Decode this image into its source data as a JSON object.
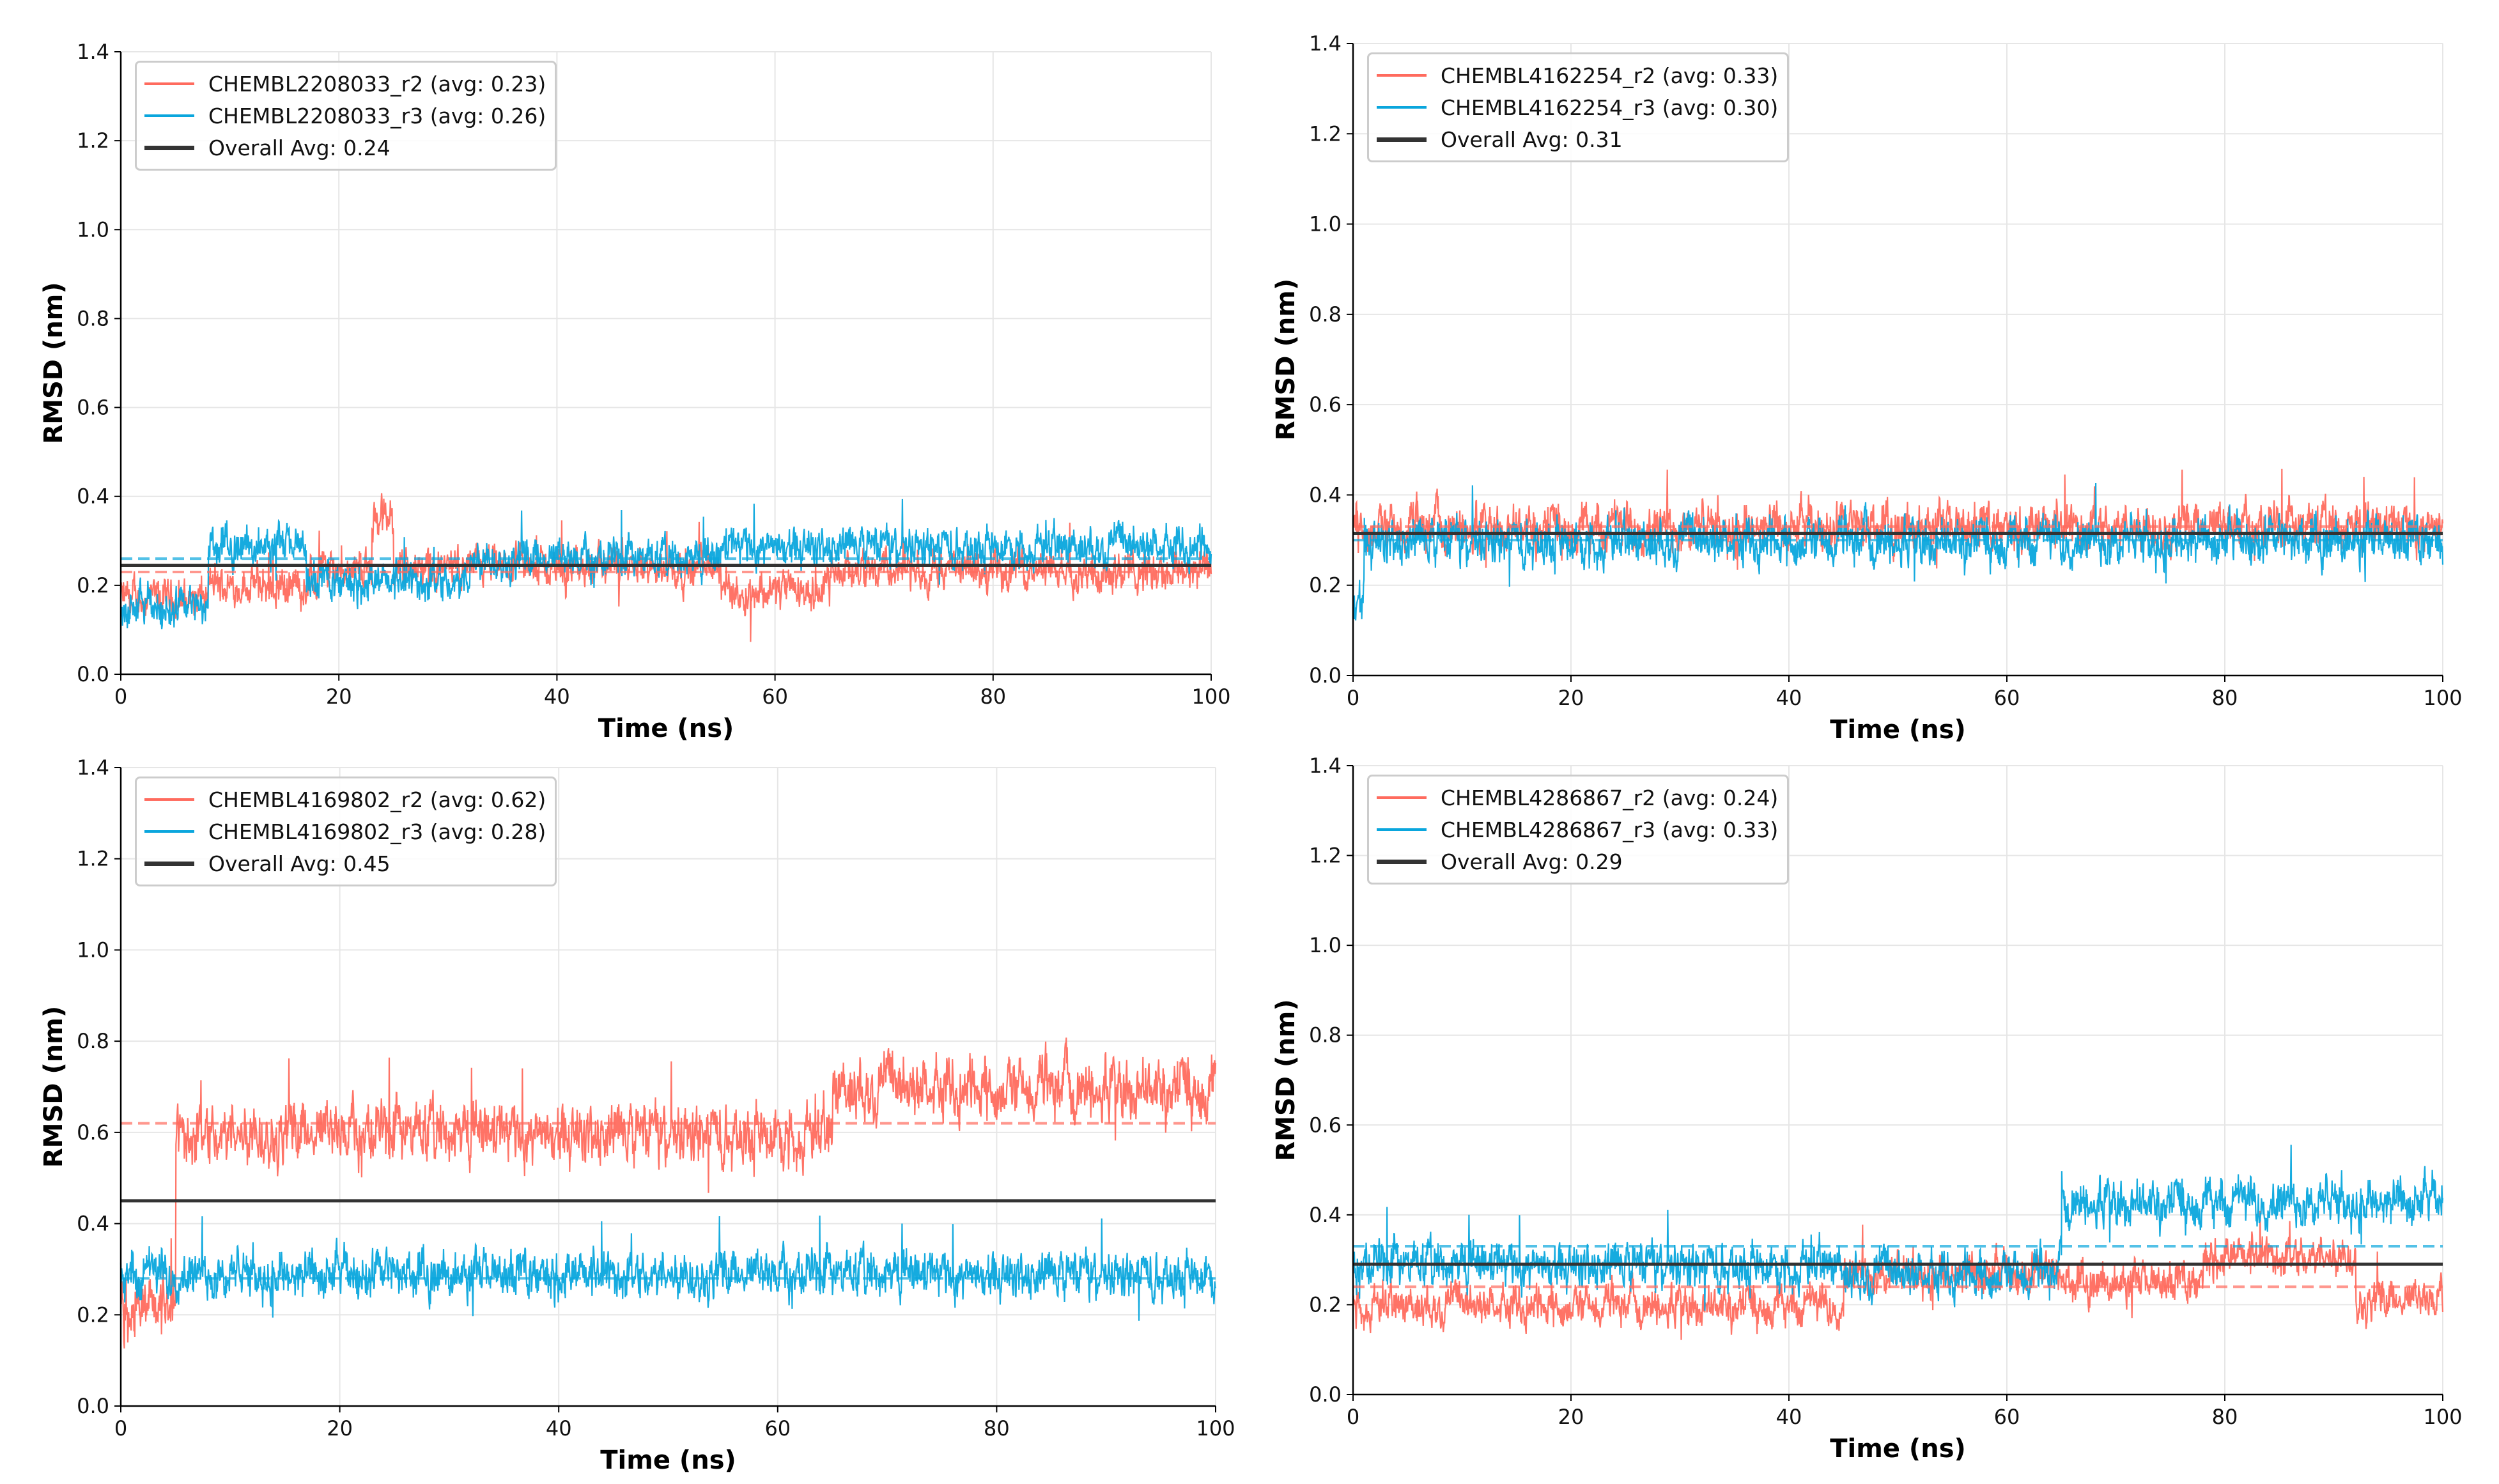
{
  "chart_data": [
    {
      "type": "line",
      "xlabel": "Time (ns)",
      "ylabel": "RMSD (nm)",
      "xlim": [
        0,
        100
      ],
      "ylim": [
        0,
        1.4
      ],
      "xticks": [
        "0",
        "20",
        "40",
        "60",
        "80",
        "100"
      ],
      "yticks": [
        "0.0",
        "0.2",
        "0.4",
        "0.6",
        "0.8",
        "1.0",
        "1.2",
        "1.4"
      ],
      "grid": true,
      "legend_position": "top-left",
      "series": [
        {
          "name": "CHEMBL2208033_r2 (avg: 0.23)",
          "color": "#ff6b5e",
          "avg": 0.23,
          "noise": 0.03,
          "segments": [
            [
              0,
              8,
              0.17
            ],
            [
              8,
              18,
              0.2
            ],
            [
              18,
              23,
              0.24
            ],
            [
              23,
              25,
              0.35
            ],
            [
              25,
              55,
              0.24
            ],
            [
              55,
              65,
              0.19
            ],
            [
              65,
              100,
              0.235
            ]
          ]
        },
        {
          "name": "CHEMBL2208033_r3 (avg: 0.26)",
          "color": "#0aa6dd",
          "avg": 0.26,
          "noise": 0.03,
          "segments": [
            [
              0,
              8,
              0.15
            ],
            [
              8,
              17,
              0.29
            ],
            [
              17,
              32,
              0.21
            ],
            [
              32,
              55,
              0.26
            ],
            [
              55,
              100,
              0.29
            ]
          ]
        }
      ],
      "overall": {
        "label": "Overall Avg: 0.24",
        "value": 0.245,
        "color": "#333333"
      }
    },
    {
      "type": "line",
      "xlabel": "Time (ns)",
      "ylabel": "RMSD (nm)",
      "xlim": [
        0,
        100
      ],
      "ylim": [
        0,
        1.4
      ],
      "xticks": [
        "0",
        "20",
        "40",
        "60",
        "80",
        "100"
      ],
      "yticks": [
        "0.0",
        "0.2",
        "0.4",
        "0.6",
        "0.8",
        "1.0",
        "1.2",
        "1.4"
      ],
      "grid": true,
      "legend_position": "top-left",
      "series": [
        {
          "name": "CHEMBL4162254_r2 (avg: 0.33)",
          "color": "#ff6b5e",
          "avg": 0.33,
          "noise": 0.035,
          "segments": [
            [
              0,
              100,
              0.33
            ]
          ]
        },
        {
          "name": "CHEMBL4162254_r3 (avg: 0.30)",
          "color": "#0aa6dd",
          "avg": 0.3,
          "noise": 0.035,
          "segments": [
            [
              0,
              1,
              0.17
            ],
            [
              1,
              100,
              0.3
            ]
          ]
        }
      ],
      "overall": {
        "label": "Overall Avg: 0.31",
        "value": 0.315,
        "color": "#333333"
      }
    },
    {
      "type": "line",
      "xlabel": "Time (ns)",
      "ylabel": "RMSD (nm)",
      "xlim": [
        0,
        100
      ],
      "ylim": [
        0,
        1.4
      ],
      "xticks": [
        "0",
        "20",
        "40",
        "60",
        "80",
        "100"
      ],
      "yticks": [
        "0.0",
        "0.2",
        "0.4",
        "0.6",
        "0.8",
        "1.0",
        "1.2",
        "1.4"
      ],
      "grid": true,
      "legend_position": "top-left",
      "series": [
        {
          "name": "CHEMBL4169802_r2 (avg: 0.62)",
          "color": "#ff6b5e",
          "avg": 0.62,
          "noise": 0.045,
          "segments": [
            [
              0,
              5,
              0.22
            ],
            [
              5,
              65,
              0.6
            ],
            [
              65,
              100,
              0.7
            ]
          ]
        },
        {
          "name": "CHEMBL4169802_r3 (avg: 0.28)",
          "color": "#0aa6dd",
          "avg": 0.28,
          "noise": 0.035,
          "segments": [
            [
              0,
              100,
              0.29
            ]
          ]
        }
      ],
      "overall": {
        "label": "Overall Avg: 0.45",
        "value": 0.45,
        "color": "#333333"
      }
    },
    {
      "type": "line",
      "xlabel": "Time (ns)",
      "ylabel": "RMSD (nm)",
      "xlim": [
        0,
        100
      ],
      "ylim": [
        0,
        1.4
      ],
      "xticks": [
        "0",
        "20",
        "40",
        "60",
        "80",
        "100"
      ],
      "yticks": [
        "0.0",
        "0.2",
        "0.4",
        "0.6",
        "0.8",
        "1.0",
        "1.2",
        "1.4"
      ],
      "grid": true,
      "legend_position": "top-left",
      "series": [
        {
          "name": "CHEMBL4286867_r2 (avg: 0.24)",
          "color": "#ff6b5e",
          "avg": 0.24,
          "noise": 0.03,
          "segments": [
            [
              0,
              45,
              0.2
            ],
            [
              45,
              65,
              0.27
            ],
            [
              65,
              78,
              0.25
            ],
            [
              78,
              92,
              0.31
            ],
            [
              92,
              100,
              0.21
            ]
          ]
        },
        {
          "name": "CHEMBL4286867_r3 (avg: 0.33)",
          "color": "#0aa6dd",
          "avg": 0.33,
          "noise": 0.035,
          "segments": [
            [
              0,
              45,
              0.29
            ],
            [
              45,
              65,
              0.27
            ],
            [
              65,
              100,
              0.43
            ]
          ]
        }
      ],
      "overall": {
        "label": "Overall Avg: 0.29",
        "value": 0.29,
        "color": "#333333"
      }
    }
  ]
}
